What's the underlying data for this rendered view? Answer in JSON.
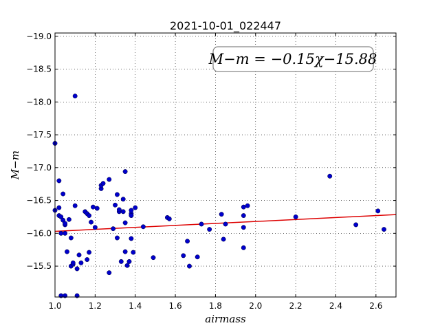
{
  "chart_data": {
    "type": "scatter",
    "title": "2021-10-01_022447",
    "xlabel": "airmass",
    "ylabel": "M−m",
    "xlim": [
      1.0,
      2.7
    ],
    "ylim": [
      -19.05,
      -15.03
    ],
    "y_inverted": true,
    "grid": true,
    "xticks": [
      1.0,
      1.2,
      1.4,
      1.6,
      1.8,
      2.0,
      2.2,
      2.4,
      2.6
    ],
    "xtick_labels": [
      "1.0",
      "1.2",
      "1.4",
      "1.6",
      "1.8",
      "2.0",
      "2.2",
      "2.4",
      "2.6"
    ],
    "yticks": [
      -15.5,
      -16.0,
      -16.5,
      -17.0,
      -17.5,
      -18.0,
      -18.5,
      -19.0
    ],
    "ytick_labels": [
      "−15.5",
      "−16.0",
      "−16.5",
      "−17.0",
      "−17.5",
      "−18.0",
      "−18.5",
      "−19.0"
    ],
    "annotation": "M−m = −0.15χ−15.88",
    "fit": {
      "slope": -0.15,
      "intercept": -15.88,
      "color": "#dd0000"
    },
    "point_color": "#0000cc",
    "points": [
      [
        1.0,
        -16.35
      ],
      [
        1.0,
        -17.37
      ],
      [
        1.02,
        -16.39
      ],
      [
        1.02,
        -16.27
      ],
      [
        1.02,
        -16.8
      ],
      [
        1.03,
        -15.05
      ],
      [
        1.03,
        -16.0
      ],
      [
        1.03,
        -16.25
      ],
      [
        1.04,
        -16.2
      ],
      [
        1.04,
        -16.6
      ],
      [
        1.05,
        -15.05
      ],
      [
        1.05,
        -16.0
      ],
      [
        1.05,
        -16.13
      ],
      [
        1.05,
        -16.15
      ],
      [
        1.06,
        -15.72
      ],
      [
        1.07,
        -16.21
      ],
      [
        1.08,
        -15.5
      ],
      [
        1.08,
        -15.93
      ],
      [
        1.09,
        -15.53
      ],
      [
        1.09,
        -15.55
      ],
      [
        1.1,
        -16.42
      ],
      [
        1.1,
        -18.09
      ],
      [
        1.11,
        -15.05
      ],
      [
        1.11,
        -15.46
      ],
      [
        1.12,
        -15.67
      ],
      [
        1.13,
        -15.55
      ],
      [
        1.15,
        -16.33
      ],
      [
        1.16,
        -15.6
      ],
      [
        1.16,
        -16.3
      ],
      [
        1.17,
        -15.71
      ],
      [
        1.17,
        -16.27
      ],
      [
        1.18,
        -16.17
      ],
      [
        1.19,
        -16.4
      ],
      [
        1.2,
        -16.09
      ],
      [
        1.21,
        -16.38
      ],
      [
        1.23,
        -16.68
      ],
      [
        1.23,
        -16.73
      ],
      [
        1.24,
        -16.76
      ],
      [
        1.27,
        -16.82
      ],
      [
        1.27,
        -15.4
      ],
      [
        1.29,
        -16.07
      ],
      [
        1.3,
        -16.43
      ],
      [
        1.31,
        -15.93
      ],
      [
        1.31,
        -16.59
      ],
      [
        1.32,
        -16.33
      ],
      [
        1.32,
        -16.36
      ],
      [
        1.33,
        -15.57
      ],
      [
        1.34,
        -16.33
      ],
      [
        1.34,
        -16.52
      ],
      [
        1.35,
        -16.16
      ],
      [
        1.35,
        -16.94
      ],
      [
        1.35,
        -15.72
      ],
      [
        1.36,
        -15.51
      ],
      [
        1.37,
        -15.57
      ],
      [
        1.38,
        -16.3
      ],
      [
        1.38,
        -16.35
      ],
      [
        1.38,
        -16.27
      ],
      [
        1.38,
        -15.92
      ],
      [
        1.39,
        -15.71
      ],
      [
        1.4,
        -16.39
      ],
      [
        1.44,
        -16.1
      ],
      [
        1.49,
        -15.63
      ],
      [
        1.56,
        -16.24
      ],
      [
        1.57,
        -16.22
      ],
      [
        1.64,
        -15.66
      ],
      [
        1.66,
        -15.88
      ],
      [
        1.67,
        -15.5
      ],
      [
        1.71,
        -15.64
      ],
      [
        1.73,
        -16.14
      ],
      [
        1.77,
        -16.06
      ],
      [
        1.83,
        -16.29
      ],
      [
        1.84,
        -15.91
      ],
      [
        1.85,
        -16.14
      ],
      [
        1.94,
        -15.78
      ],
      [
        1.94,
        -16.09
      ],
      [
        1.94,
        -16.27
      ],
      [
        1.94,
        -16.4
      ],
      [
        1.96,
        -16.42
      ],
      [
        2.2,
        -16.25
      ],
      [
        2.37,
        -16.87
      ],
      [
        2.5,
        -16.13
      ],
      [
        2.61,
        -16.34
      ],
      [
        2.64,
        -16.06
      ]
    ]
  }
}
